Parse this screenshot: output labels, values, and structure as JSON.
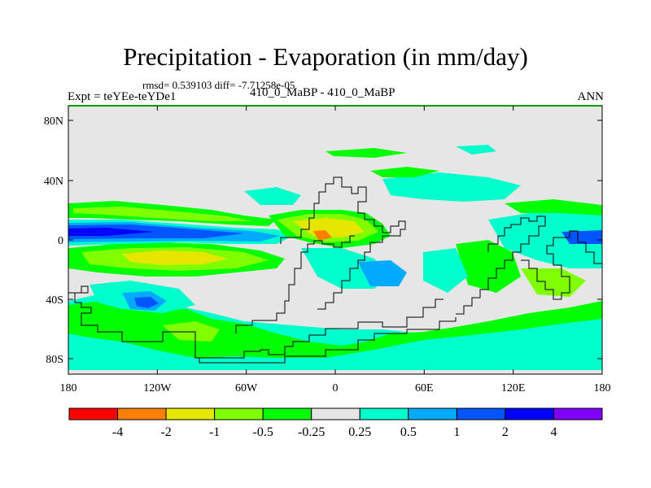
{
  "title": "Precipitation - Evaporation (in mm/day)",
  "stats": "rmsd= 0.539103 diff= -7.71258e-05",
  "left_label": "Expt = teYEe-teYDe1",
  "center_label": "410_0_MaBP - 410_0_MaBP",
  "right_label": "ANN",
  "map": {
    "background_color": "#e6e6e6",
    "y_ticks": [
      "80N",
      "40N",
      "0",
      "40S",
      "80S"
    ],
    "x_ticks": [
      "180",
      "120W",
      "60W",
      "0",
      "60E",
      "120E",
      "180"
    ]
  },
  "colorbar": {
    "colors": [
      "#ff0000",
      "#ff8000",
      "#e6e600",
      "#80ff00",
      "#00ff00",
      "#e6e6e6",
      "#00ffcc",
      "#00aaff",
      "#0055ff",
      "#0000ff",
      "#8000ff"
    ],
    "labels": [
      "-4",
      "-2",
      "-1",
      "-0.5",
      "-0.25",
      "0.25",
      "0.5",
      "1",
      "2",
      "4"
    ]
  }
}
